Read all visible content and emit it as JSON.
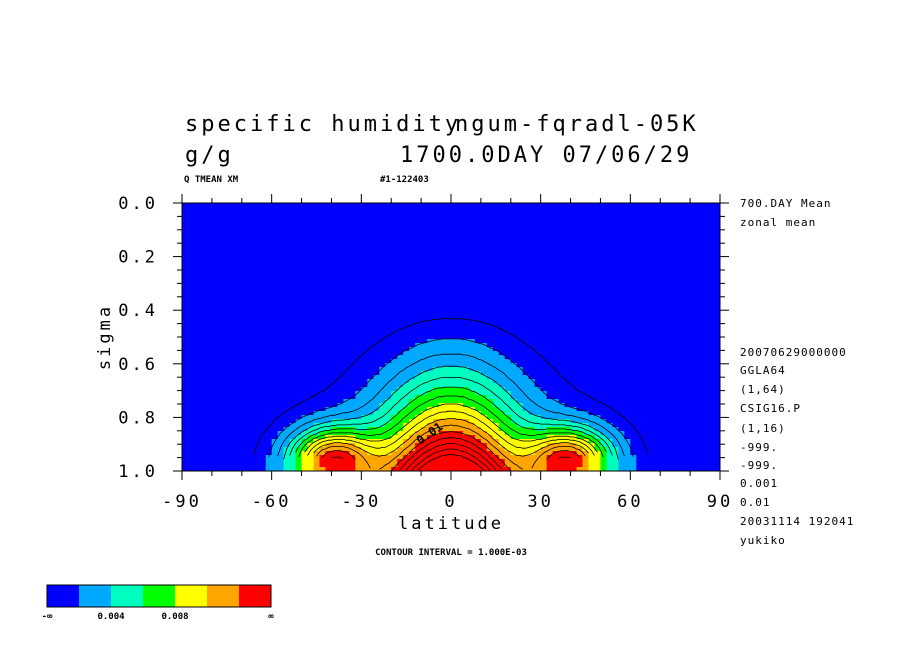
{
  "chart_data": {
    "type": "heatmap",
    "title": "specific humidity",
    "units": "g/g",
    "run_title": "ngum-fqradl-05K",
    "time_label": "1700.0DAY 07/06/29",
    "var_label": "Q TMEAN XM",
    "run_id": "#1-122403",
    "xlabel": "latitude",
    "ylabel": "sigma",
    "xlim": [
      -90,
      90
    ],
    "ylim": [
      1.0,
      0.0
    ],
    "xticks": [
      "-90",
      "-60",
      "-30",
      "0",
      "30",
      "60",
      "90"
    ],
    "yticks": [
      "0.0",
      "0.2",
      "0.4",
      "0.6",
      "0.8",
      "1.0"
    ],
    "contour_interval_text": "CONTOUR INTERVAL = 1.000E-03",
    "contour_inline_label": "0.01",
    "colorbar_labels": [
      "-∞",
      "0.004",
      "0.008",
      "∞"
    ],
    "levels": [
      0,
      0.002,
      0.004,
      0.006,
      0.008,
      0.01,
      0.012
    ],
    "colors": [
      "#0000ff",
      "#00a8ff",
      "#00ffbf",
      "#00ff00",
      "#ffff00",
      "#ffa500",
      "#ff0000"
    ],
    "side_info": [
      "700.DAY Mean",
      "zonal mean",
      "20070629000000",
      "GGLA64",
      "(1,64)",
      "CSIG16.P",
      "(1,16)",
      "-999.",
      "-999.",
      "0.001",
      "0.01",
      "20031114 192041",
      "yukiko"
    ],
    "peak": {
      "lat": 0,
      "sigma": 1.0,
      "approx_value": 0.019
    }
  }
}
